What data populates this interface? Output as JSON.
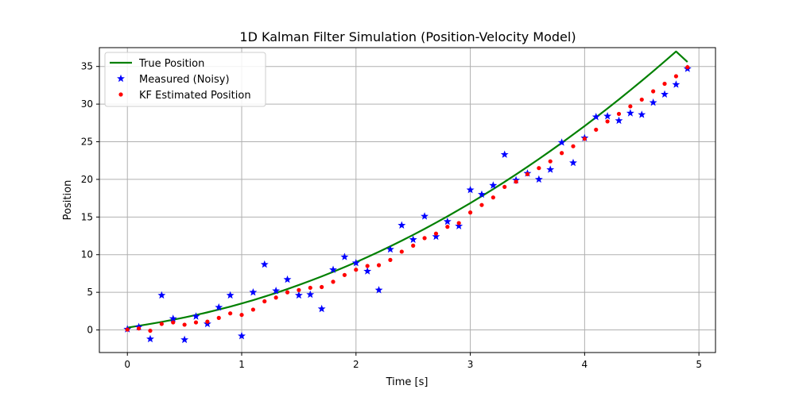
{
  "chart_data": {
    "type": "line",
    "title": "1D Kalman Filter Simulation (Position-Velocity Model)",
    "xlabel": "Time [s]",
    "ylabel": "Position",
    "xlim": [
      -0.245,
      5.145
    ],
    "ylim": [
      -3.0,
      37.5
    ],
    "x_ticks": [
      0,
      1,
      2,
      3,
      4,
      5
    ],
    "y_ticks": [
      0,
      5,
      10,
      15,
      20,
      25,
      30,
      35
    ],
    "grid": true,
    "legend_position": "top-left",
    "series": [
      {
        "name": "True Position",
        "style": "line",
        "color": "#008000",
        "x": [
          0.0,
          0.1,
          0.2,
          0.3,
          0.4,
          0.5,
          0.6,
          0.7,
          0.8,
          0.9,
          1.0,
          1.1,
          1.2,
          1.3,
          1.4,
          1.5,
          1.6,
          1.7,
          1.8,
          1.9,
          2.0,
          2.1,
          2.2,
          2.3,
          2.4,
          2.5,
          2.6,
          2.7,
          2.8,
          2.9,
          3.0,
          3.1,
          3.2,
          3.3,
          3.4,
          3.5,
          3.6,
          3.7,
          3.8,
          3.9,
          4.0,
          4.1,
          4.2,
          4.3,
          4.4,
          4.5,
          4.6,
          4.7,
          4.8,
          4.9
        ],
        "y": [
          0.3,
          0.55,
          0.8,
          1.07,
          1.36,
          1.66,
          1.99,
          2.34,
          2.71,
          3.1,
          3.52,
          3.96,
          4.43,
          4.92,
          5.43,
          5.97,
          6.53,
          7.11,
          7.72,
          8.35,
          9.0,
          9.68,
          10.38,
          11.11,
          11.86,
          12.63,
          13.43,
          14.25,
          15.09,
          15.96,
          16.85,
          17.77,
          18.71,
          19.67,
          20.66,
          21.67,
          22.71,
          23.77,
          24.85,
          25.96,
          27.09,
          28.24,
          29.42,
          30.62,
          31.85,
          33.1,
          34.37,
          35.67,
          36.99,
          35.6
        ]
      },
      {
        "name": "Measured (Noisy)",
        "style": "star",
        "color": "#0000ff",
        "x": [
          0.0,
          0.1,
          0.2,
          0.3,
          0.4,
          0.5,
          0.6,
          0.7,
          0.8,
          0.9,
          1.0,
          1.1,
          1.2,
          1.3,
          1.4,
          1.5,
          1.6,
          1.7,
          1.8,
          1.9,
          2.0,
          2.1,
          2.2,
          2.3,
          2.4,
          2.5,
          2.6,
          2.7,
          2.8,
          2.9,
          3.0,
          3.1,
          3.2,
          3.3,
          3.4,
          3.5,
          3.6,
          3.7,
          3.8,
          3.9,
          4.0,
          4.1,
          4.2,
          4.3,
          4.4,
          4.5,
          4.6,
          4.7,
          4.8,
          4.9
        ],
        "y": [
          0.1,
          0.4,
          -1.2,
          4.6,
          1.5,
          -1.3,
          1.8,
          0.8,
          3.0,
          4.6,
          -0.8,
          5.0,
          8.7,
          5.2,
          6.7,
          4.6,
          4.7,
          2.8,
          8.0,
          9.7,
          8.9,
          7.8,
          5.3,
          10.7,
          13.9,
          12.0,
          15.1,
          12.4,
          14.4,
          13.8,
          18.6,
          18.0,
          19.2,
          23.3,
          19.9,
          20.8,
          20.0,
          21.3,
          24.9,
          22.2,
          25.5,
          28.3,
          28.4,
          27.8,
          28.8,
          28.6,
          30.2,
          31.3,
          32.6,
          34.7
        ]
      },
      {
        "name": "KF Estimated Position",
        "style": "dot",
        "color": "#ff0000",
        "x": [
          0.0,
          0.1,
          0.2,
          0.3,
          0.4,
          0.5,
          0.6,
          0.7,
          0.8,
          0.9,
          1.0,
          1.1,
          1.2,
          1.3,
          1.4,
          1.5,
          1.6,
          1.7,
          1.8,
          1.9,
          2.0,
          2.1,
          2.2,
          2.3,
          2.4,
          2.5,
          2.6,
          2.7,
          2.8,
          2.9,
          3.0,
          3.1,
          3.2,
          3.3,
          3.4,
          3.5,
          3.6,
          3.7,
          3.8,
          3.9,
          4.0,
          4.1,
          4.2,
          4.3,
          4.4,
          4.5,
          4.6,
          4.7,
          4.8,
          4.9
        ],
        "y": [
          0.05,
          0.2,
          -0.1,
          0.8,
          1.0,
          0.7,
          1.0,
          1.1,
          1.6,
          2.2,
          2.0,
          2.7,
          3.8,
          4.3,
          5.0,
          5.3,
          5.6,
          5.7,
          6.4,
          7.3,
          8.0,
          8.5,
          8.6,
          9.3,
          10.4,
          11.2,
          12.2,
          12.8,
          13.7,
          14.2,
          15.6,
          16.6,
          17.6,
          19.0,
          19.7,
          20.7,
          21.5,
          22.4,
          23.5,
          24.4,
          25.4,
          26.6,
          27.7,
          28.7,
          29.7,
          30.6,
          31.7,
          32.7,
          33.7,
          34.9
        ]
      }
    ]
  }
}
